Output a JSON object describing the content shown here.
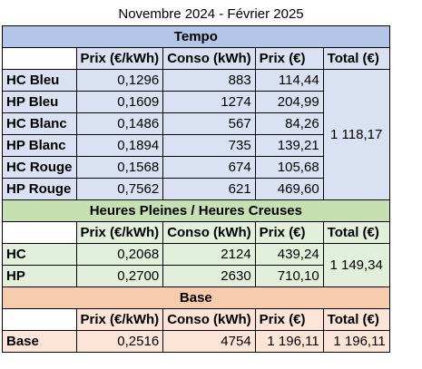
{
  "title": "Novembre 2024 - Février 2025",
  "columns": {
    "prix": "Prix (€/kWh)",
    "conso": "Conso (kWh)",
    "prix_eur": "Prix (€)",
    "total": "Total (€)"
  },
  "colors": {
    "tempo_header": "#b4c6e7",
    "tempo_body": "#d9e1f2",
    "hphc_header": "#c6e0b4",
    "hphc_body": "#e2efda",
    "base_header": "#f8cbad",
    "base_body": "#fce4d6"
  },
  "tempo": {
    "name": "Tempo",
    "total": "1 118,17",
    "rows": [
      {
        "label": "HC Bleu",
        "prix": "0,1296",
        "conso": "883",
        "cost": "114,44"
      },
      {
        "label": "HP Bleu",
        "prix": "0,1609",
        "conso": "1274",
        "cost": "204,99"
      },
      {
        "label": "HC Blanc",
        "prix": "0,1486",
        "conso": "567",
        "cost": "84,26"
      },
      {
        "label": "HP Blanc",
        "prix": "0,1894",
        "conso": "735",
        "cost": "139,21"
      },
      {
        "label": "HC Rouge",
        "prix": "0,1568",
        "conso": "674",
        "cost": "105,68"
      },
      {
        "label": "HP Rouge",
        "prix": "0,7562",
        "conso": "621",
        "cost": "469,60"
      }
    ]
  },
  "hphc": {
    "name": "Heures Pleines / Heures Creuses",
    "total": "1 149,34",
    "rows": [
      {
        "label": "HC",
        "prix": "0,2068",
        "conso": "2124",
        "cost": "439,24"
      },
      {
        "label": "HP",
        "prix": "0,2700",
        "conso": "2630",
        "cost": "710,10"
      }
    ]
  },
  "base": {
    "name": "Base",
    "total": "1 196,11",
    "rows": [
      {
        "label": "Base",
        "prix": "0,2516",
        "conso": "4754",
        "cost": "1 196,11"
      }
    ]
  }
}
